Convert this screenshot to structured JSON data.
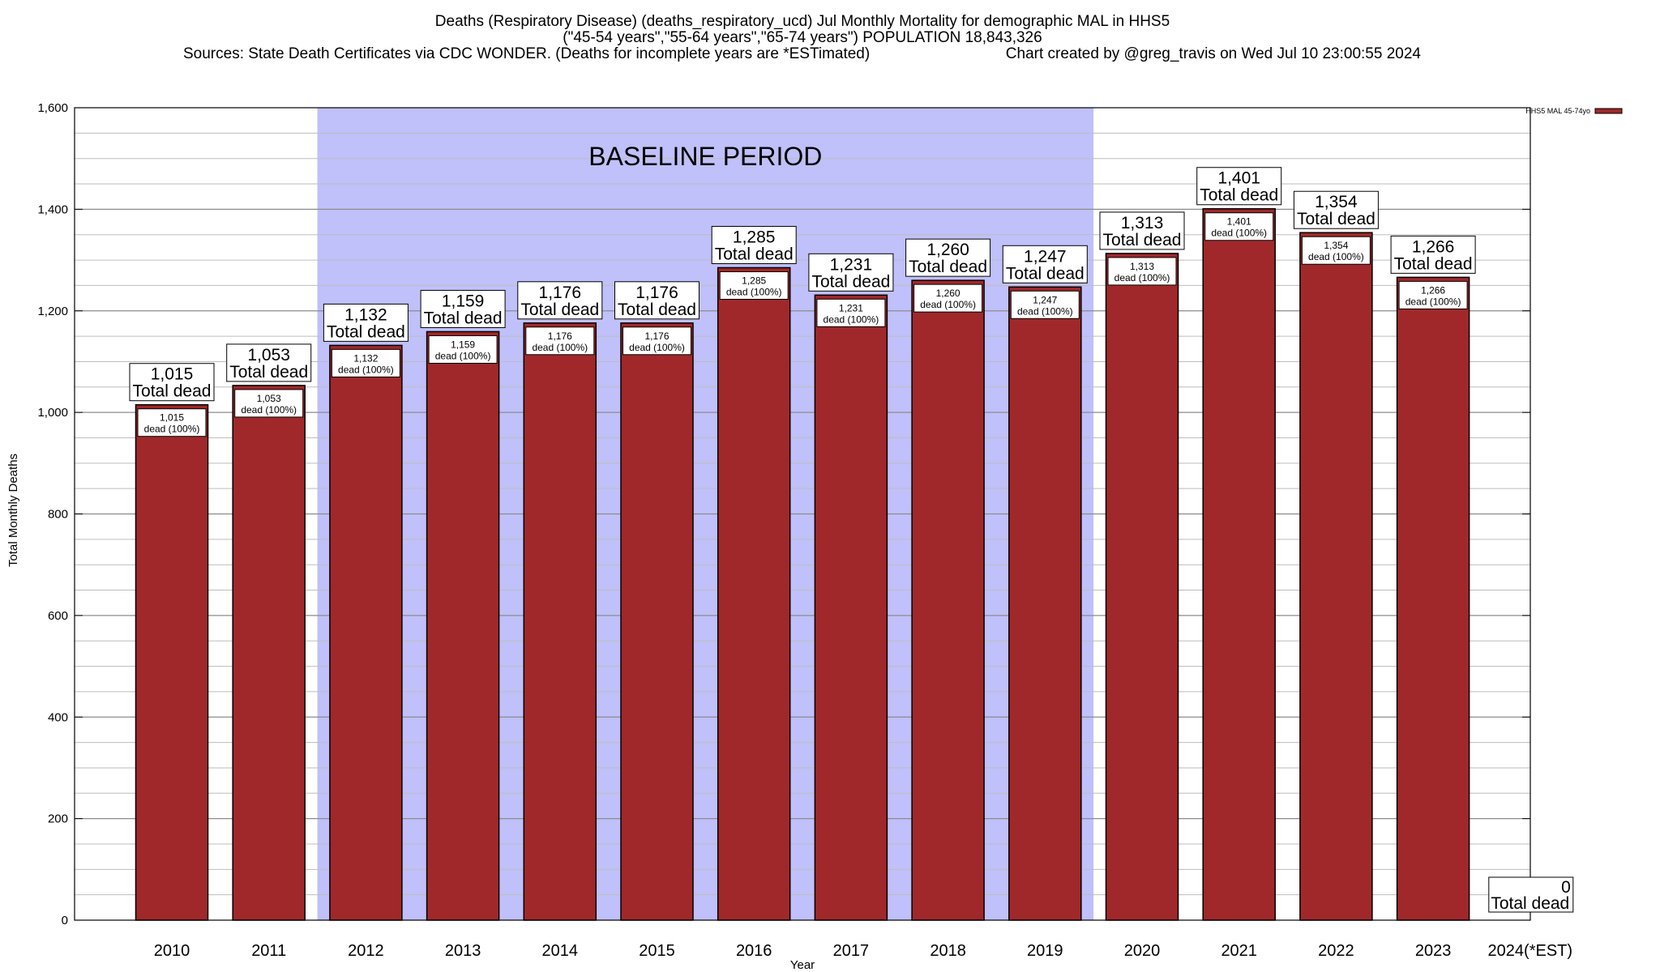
{
  "chart_data": {
    "type": "bar",
    "title": [
      "Deaths (Respiratory Disease) (deaths_respiratory_ucd) Jul Monthly Mortality for demographic MAL in HHS5",
      "(\"45-54 years\",\"55-64 years\",\"65-74 years\") POPULATION 18,843,326",
      "Sources: State Death Certificates via CDC WONDER. (Deaths for incomplete years are *ESTimated)",
      "Chart created by @greg_travis on Wed Jul 10 23:00:55 2024"
    ],
    "xlabel": "Year",
    "ylabel": "Total Monthly Deaths",
    "ylim": [
      0,
      1600
    ],
    "yticks": [
      0,
      200,
      400,
      600,
      800,
      1000,
      1200,
      1400,
      1600
    ],
    "ytick_labels": [
      "0",
      "200",
      "400",
      "600",
      "800",
      "1,000",
      "1,200",
      "1,400",
      "1,600"
    ],
    "grid": true,
    "legend": {
      "placement": "top-right",
      "entries": [
        "HHS5 MAL 45-74yo"
      ]
    },
    "categories": [
      "2010",
      "2011",
      "2012",
      "2013",
      "2014",
      "2015",
      "2016",
      "2017",
      "2018",
      "2019",
      "2020",
      "2021",
      "2022",
      "2023",
      "2024(*EST)"
    ],
    "series": [
      {
        "name": "HHS5 MAL 45-74yo",
        "color": "#a0282a",
        "values": [
          1015,
          1053,
          1132,
          1159,
          1176,
          1176,
          1285,
          1231,
          1260,
          1247,
          1313,
          1401,
          1354,
          1266,
          0
        ]
      }
    ],
    "value_labels": [
      "1,015",
      "1,053",
      "1,132",
      "1,159",
      "1,176",
      "1,176",
      "1,285",
      "1,231",
      "1,260",
      "1,247",
      "1,313",
      "1,401",
      "1,354",
      "1,266",
      "0"
    ],
    "total_label": "Total dead",
    "inner_label_suffix": "dead (100%)",
    "baseline": {
      "label": "BASELINE PERIOD",
      "start": "2012",
      "end": "2019",
      "color": "#c0c0fa"
    }
  }
}
